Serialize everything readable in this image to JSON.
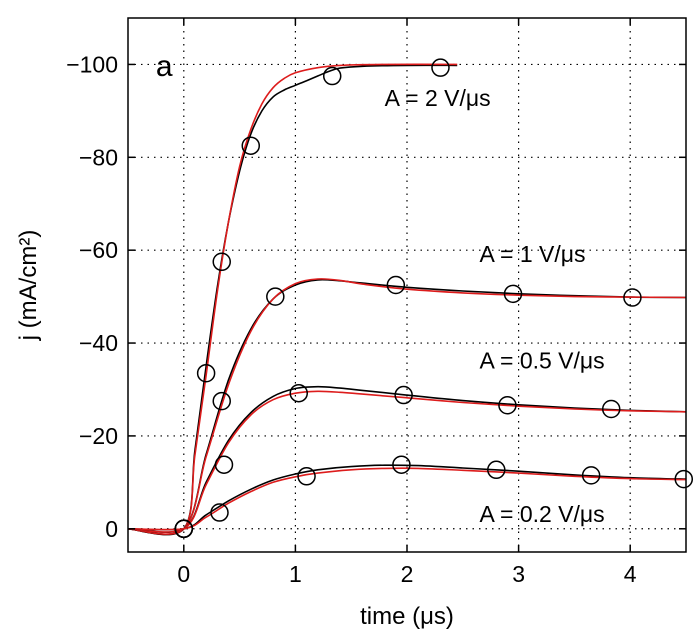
{
  "chart_data": {
    "type": "line",
    "panel_label": "a",
    "xlabel": "time (μs)",
    "ylabel": "j (mA/cm²)",
    "xlim": [
      -0.5,
      4.5
    ],
    "ylim": [
      5,
      -110
    ],
    "y_axis_reversed": true,
    "grid": "dotted",
    "x_ticks": [
      0,
      1,
      2,
      3,
      4
    ],
    "x_tick_labels": [
      "0",
      "1",
      "2",
      "3",
      "4"
    ],
    "y_ticks": [
      0,
      -20,
      -40,
      -60,
      -80,
      -100
    ],
    "y_tick_labels": [
      "0",
      "−20",
      "−40",
      "−60",
      "−80",
      "−100"
    ],
    "colors": {
      "measured": "#000000",
      "fit": "#dd1c1c",
      "axis": "#000000",
      "grid": "#000000"
    },
    "series": [
      {
        "annotation": "A = 2 V/μs",
        "annotation_x": 1.8,
        "annotation_y": -91,
        "measured": [
          [
            -0.5,
            0
          ],
          [
            0,
            0
          ],
          [
            0.1,
            -17
          ],
          [
            0.2,
            -35
          ],
          [
            0.3,
            -52
          ],
          [
            0.4,
            -66
          ],
          [
            0.5,
            -77
          ],
          [
            0.6,
            -85
          ],
          [
            0.7,
            -90
          ],
          [
            0.8,
            -93
          ],
          [
            0.9,
            -94.5
          ],
          [
            1.0,
            -95.5
          ],
          [
            1.1,
            -96.5
          ],
          [
            1.2,
            -97.5
          ],
          [
            1.3,
            -98.5
          ],
          [
            1.4,
            -99.2
          ],
          [
            1.6,
            -99.6
          ],
          [
            2.0,
            -99.8
          ],
          [
            2.45,
            -99.8
          ]
        ],
        "fit": [
          [
            -0.5,
            0
          ],
          [
            0,
            0
          ],
          [
            0.1,
            -16
          ],
          [
            0.2,
            -33
          ],
          [
            0.3,
            -51
          ],
          [
            0.4,
            -66
          ],
          [
            0.5,
            -78
          ],
          [
            0.6,
            -86
          ],
          [
            0.7,
            -91.5
          ],
          [
            0.8,
            -95
          ],
          [
            0.9,
            -97
          ],
          [
            1.0,
            -98.2
          ],
          [
            1.2,
            -99.3
          ],
          [
            1.4,
            -99.8
          ],
          [
            1.8,
            -100
          ],
          [
            2.45,
            -100
          ]
        ],
        "markers": [
          [
            0,
            0
          ],
          [
            0.6,
            -82.5
          ],
          [
            0.34,
            -57.5
          ],
          [
            1.33,
            -97.5
          ],
          [
            2.3,
            -99.3
          ]
        ]
      },
      {
        "annotation": "A = 1 V/μs",
        "annotation_x": 2.65,
        "annotation_y": -57.5,
        "measured": [
          [
            -0.5,
            0
          ],
          [
            0,
            0
          ],
          [
            0.2,
            -16
          ],
          [
            0.4,
            -32
          ],
          [
            0.6,
            -43
          ],
          [
            0.8,
            -49.5
          ],
          [
            1.0,
            -52.5
          ],
          [
            1.2,
            -53.6
          ],
          [
            1.4,
            -53.4
          ],
          [
            1.6,
            -52.9
          ],
          [
            2.0,
            -52
          ],
          [
            2.5,
            -51.2
          ],
          [
            3.0,
            -50.6
          ],
          [
            3.5,
            -50.2
          ],
          [
            4.0,
            -49.9
          ],
          [
            4.5,
            -49.8
          ]
        ],
        "fit": [
          [
            -0.5,
            0
          ],
          [
            0,
            0
          ],
          [
            0.2,
            -15.5
          ],
          [
            0.4,
            -31
          ],
          [
            0.6,
            -42.5
          ],
          [
            0.8,
            -49.5
          ],
          [
            1.0,
            -52.8
          ],
          [
            1.2,
            -53.8
          ],
          [
            1.4,
            -53.5
          ],
          [
            1.6,
            -52.7
          ],
          [
            2.0,
            -51.6
          ],
          [
            2.5,
            -50.8
          ],
          [
            3.0,
            -50.3
          ],
          [
            3.5,
            -50
          ],
          [
            4.0,
            -49.9
          ],
          [
            4.5,
            -49.8
          ]
        ],
        "markers": [
          [
            0,
            0
          ],
          [
            0.2,
            -33.5
          ],
          [
            0.82,
            -50
          ],
          [
            1.9,
            -52.5
          ],
          [
            2.95,
            -50.6
          ],
          [
            4.02,
            -49.8
          ]
        ]
      },
      {
        "annotation": "A = 0.5 V/μs",
        "annotation_x": 2.65,
        "annotation_y": -34.5,
        "measured": [
          [
            -0.5,
            0
          ],
          [
            0,
            0
          ],
          [
            0.2,
            -10
          ],
          [
            0.4,
            -19
          ],
          [
            0.6,
            -25
          ],
          [
            0.8,
            -28.5
          ],
          [
            1.0,
            -30.2
          ],
          [
            1.2,
            -30.6
          ],
          [
            1.4,
            -30.3
          ],
          [
            1.6,
            -29.8
          ],
          [
            2.0,
            -28.8
          ],
          [
            2.5,
            -27.6
          ],
          [
            3.0,
            -26.7
          ],
          [
            3.5,
            -26
          ],
          [
            4.0,
            -25.5
          ],
          [
            4.5,
            -25.2
          ]
        ],
        "fit": [
          [
            -0.5,
            0
          ],
          [
            0,
            0
          ],
          [
            0.2,
            -9.5
          ],
          [
            0.4,
            -18.5
          ],
          [
            0.6,
            -24.5
          ],
          [
            0.8,
            -27.8
          ],
          [
            1.0,
            -29.2
          ],
          [
            1.2,
            -29.6
          ],
          [
            1.4,
            -29.4
          ],
          [
            1.6,
            -29
          ],
          [
            2.0,
            -28.2
          ],
          [
            2.5,
            -27.2
          ],
          [
            3.0,
            -26.4
          ],
          [
            3.5,
            -25.8
          ],
          [
            4.0,
            -25.4
          ],
          [
            4.5,
            -25.2
          ]
        ],
        "markers": [
          [
            0,
            0
          ],
          [
            0.34,
            -27.5
          ],
          [
            1.03,
            -29.2
          ],
          [
            1.97,
            -28.8
          ],
          [
            2.9,
            -26.6
          ],
          [
            3.83,
            -25.8
          ]
        ]
      },
      {
        "annotation": "A = 0.2 V/μs",
        "annotation_x": 2.65,
        "annotation_y": -1.5,
        "measured": [
          [
            -0.5,
            0
          ],
          [
            0,
            0
          ],
          [
            0.2,
            -3
          ],
          [
            0.4,
            -6
          ],
          [
            0.6,
            -8.5
          ],
          [
            0.8,
            -10.5
          ],
          [
            1.0,
            -11.8
          ],
          [
            1.2,
            -12.7
          ],
          [
            1.5,
            -13.4
          ],
          [
            1.8,
            -13.7
          ],
          [
            2.1,
            -13.6
          ],
          [
            2.5,
            -13.1
          ],
          [
            3.0,
            -12.4
          ],
          [
            3.5,
            -11.6
          ],
          [
            4.0,
            -11
          ],
          [
            4.5,
            -10.7
          ]
        ],
        "fit": [
          [
            -0.5,
            0
          ],
          [
            0,
            0
          ],
          [
            0.2,
            -2.5
          ],
          [
            0.4,
            -5.5
          ],
          [
            0.6,
            -8
          ],
          [
            0.8,
            -10
          ],
          [
            1.0,
            -11.2
          ],
          [
            1.2,
            -12
          ],
          [
            1.5,
            -12.7
          ],
          [
            1.8,
            -13
          ],
          [
            2.1,
            -13
          ],
          [
            2.5,
            -12.6
          ],
          [
            3.0,
            -12
          ],
          [
            3.5,
            -11.3
          ],
          [
            4.0,
            -10.8
          ],
          [
            4.5,
            -10.6
          ]
        ],
        "markers": [
          [
            0,
            0
          ],
          [
            0.36,
            -13.8
          ],
          [
            0.32,
            -3.5
          ],
          [
            1.1,
            -11.3
          ],
          [
            1.95,
            -13.8
          ],
          [
            2.8,
            -12.7
          ],
          [
            3.65,
            -11.5
          ],
          [
            4.48,
            -10.7
          ]
        ]
      }
    ]
  }
}
